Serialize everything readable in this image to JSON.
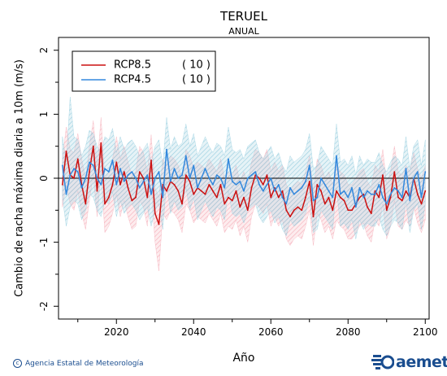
{
  "chart_data": {
    "type": "line",
    "title": "TERUEL",
    "subtitle": "ANUAL",
    "xlabel": "Año",
    "ylabel": "Cambio de racha máxima diaria a 10m (m/s)",
    "xlim": [
      2005,
      2101
    ],
    "ylim": [
      -2.2,
      2.2
    ],
    "xticks": [
      2020,
      2040,
      2060,
      2080,
      2100
    ],
    "yticks": [
      -2,
      -1,
      0,
      1,
      2
    ],
    "legend": {
      "placement": "top-left",
      "entries": [
        {
          "name": "RCP8.5",
          "count": "( 10 )",
          "color": "#cc1111"
        },
        {
          "name": "RCP4.5",
          "count": "( 10 )",
          "color": "#3388dd"
        }
      ]
    },
    "band_colors": {
      "RCP8.5": "#f4a6b2",
      "RCP4.5": "#8ec9dc"
    },
    "years_start": 2006,
    "series": [
      {
        "name": "RCP8.5",
        "color": "#cc1111",
        "values": [
          -0.1,
          0.42,
          0.05,
          0.0,
          0.3,
          -0.1,
          -0.4,
          0.1,
          0.5,
          -0.2,
          0.55,
          -0.4,
          -0.3,
          -0.1,
          0.25,
          -0.1,
          0.1,
          -0.15,
          -0.35,
          -0.3,
          0.1,
          0.0,
          -0.3,
          0.28,
          -0.55,
          -0.72,
          -0.1,
          -0.2,
          -0.05,
          -0.1,
          -0.2,
          -0.4,
          0.05,
          -0.05,
          -0.25,
          -0.15,
          -0.2,
          -0.25,
          -0.1,
          -0.2,
          -0.3,
          -0.1,
          -0.4,
          -0.3,
          -0.35,
          -0.2,
          -0.45,
          -0.3,
          -0.5,
          -0.15,
          0.05,
          0.0,
          -0.1,
          0.05,
          -0.3,
          -0.15,
          -0.3,
          -0.2,
          -0.5,
          -0.6,
          -0.5,
          -0.45,
          -0.5,
          -0.3,
          -0.05,
          -0.6,
          -0.1,
          -0.2,
          -0.4,
          -0.3,
          -0.5,
          -0.2,
          -0.3,
          -0.35,
          -0.5,
          -0.5,
          -0.4,
          -0.3,
          -0.25,
          -0.45,
          -0.55,
          -0.2,
          -0.3,
          0.05,
          -0.5,
          -0.3,
          0.1,
          -0.3,
          -0.35,
          -0.2,
          -0.3,
          0.0,
          -0.25,
          -0.4,
          -0.2
        ],
        "low": [
          -0.45,
          -0.1,
          -0.4,
          -0.5,
          -0.2,
          -0.55,
          -0.8,
          -0.35,
          0.05,
          -0.6,
          0.1,
          -0.85,
          -0.75,
          -0.55,
          -0.25,
          -0.6,
          -0.35,
          -0.6,
          -0.8,
          -0.75,
          -0.35,
          -0.45,
          -0.75,
          -0.15,
          -1.0,
          -1.45,
          -0.55,
          -0.65,
          -0.5,
          -0.55,
          -0.65,
          -0.85,
          -0.4,
          -0.5,
          -0.7,
          -0.6,
          -0.65,
          -0.7,
          -0.55,
          -0.65,
          -0.75,
          -0.55,
          -0.85,
          -0.75,
          -0.8,
          -0.65,
          -0.9,
          -0.75,
          -1.0,
          -0.6,
          -0.4,
          -0.45,
          -0.55,
          -0.4,
          -0.75,
          -0.6,
          -0.75,
          -0.65,
          -0.95,
          -1.05,
          -0.95,
          -0.9,
          -0.95,
          -0.75,
          -0.5,
          -1.05,
          -0.55,
          -0.65,
          -0.85,
          -0.75,
          -0.95,
          -0.65,
          -0.75,
          -0.8,
          -0.95,
          -0.95,
          -0.85,
          -0.75,
          -0.7,
          -0.9,
          -1.0,
          -0.65,
          -0.75,
          -0.4,
          -0.95,
          -0.75,
          -0.35,
          -0.75,
          -0.8,
          -0.65,
          -0.75,
          -0.45,
          -0.7,
          -0.85,
          -0.65
        ],
        "high": [
          0.3,
          0.8,
          0.45,
          0.4,
          0.7,
          0.3,
          0.0,
          0.5,
          0.9,
          0.2,
          0.95,
          0.0,
          0.1,
          0.3,
          0.65,
          0.3,
          0.5,
          0.25,
          0.05,
          0.1,
          0.5,
          0.4,
          0.1,
          0.68,
          -0.15,
          -0.3,
          0.3,
          0.2,
          0.35,
          0.3,
          0.2,
          0.0,
          0.45,
          0.35,
          0.15,
          0.25,
          0.2,
          0.15,
          0.3,
          0.2,
          0.1,
          0.3,
          0.0,
          0.1,
          0.05,
          0.2,
          -0.05,
          0.1,
          -0.1,
          0.25,
          0.45,
          0.4,
          0.3,
          0.45,
          0.1,
          0.25,
          0.1,
          0.2,
          -0.1,
          -0.2,
          -0.1,
          -0.05,
          -0.1,
          0.1,
          0.35,
          -0.2,
          0.3,
          0.2,
          0.0,
          0.1,
          -0.1,
          0.2,
          0.1,
          0.05,
          -0.1,
          -0.1,
          0.0,
          0.1,
          0.15,
          -0.05,
          -0.15,
          0.2,
          0.1,
          0.45,
          -0.1,
          0.1,
          0.5,
          0.1,
          0.05,
          0.2,
          0.1,
          0.4,
          0.15,
          0.0,
          0.2
        ]
      },
      {
        "name": "RCP4.5",
        "color": "#3388dd",
        "values": [
          0.2,
          -0.25,
          0.05,
          0.15,
          0.1,
          -0.15,
          0.0,
          0.25,
          0.2,
          0.0,
          -0.1,
          0.15,
          0.1,
          0.28,
          -0.1,
          0.15,
          -0.05,
          0.05,
          0.1,
          0.0,
          -0.15,
          -0.05,
          0.05,
          -0.25,
          0.0,
          0.1,
          -0.3,
          0.45,
          -0.05,
          0.15,
          0.0,
          0.05,
          0.35,
          0.0,
          0.2,
          -0.15,
          0.0,
          0.15,
          0.0,
          -0.1,
          0.05,
          0.0,
          -0.15,
          0.3,
          -0.05,
          -0.1,
          -0.05,
          -0.2,
          0.0,
          0.05,
          0.1,
          -0.1,
          -0.2,
          -0.1,
          0.0,
          -0.2,
          -0.1,
          -0.3,
          -0.4,
          -0.15,
          -0.25,
          -0.2,
          -0.15,
          -0.05,
          0.2,
          -0.35,
          -0.3,
          0.0,
          -0.1,
          -0.2,
          -0.3,
          0.35,
          -0.25,
          -0.2,
          -0.3,
          -0.15,
          -0.45,
          -0.15,
          -0.3,
          -0.2,
          -0.25,
          -0.25,
          -0.1,
          -0.3,
          -0.4,
          -0.25,
          -0.15,
          -0.2,
          -0.3,
          0.15,
          -0.35,
          0.0,
          0.1,
          -0.3,
          0.1
        ],
        "low": [
          -0.3,
          -0.75,
          -0.45,
          -0.35,
          -0.4,
          -0.65,
          -0.5,
          -0.25,
          -0.3,
          -0.5,
          -0.6,
          -0.35,
          -0.4,
          -0.22,
          -0.6,
          -0.35,
          -0.55,
          -0.45,
          -0.4,
          -0.5,
          -0.65,
          -0.55,
          -0.45,
          -0.75,
          -0.5,
          -0.4,
          -0.8,
          -0.05,
          -0.55,
          -0.35,
          -0.5,
          -0.45,
          -0.15,
          -0.5,
          -0.3,
          -0.65,
          -0.5,
          -0.35,
          -0.5,
          -0.6,
          -0.45,
          -0.5,
          -0.65,
          -0.2,
          -0.55,
          -0.6,
          -0.55,
          -0.7,
          -0.5,
          -0.45,
          -0.4,
          -0.6,
          -0.7,
          -0.6,
          -0.5,
          -0.7,
          -0.6,
          -0.8,
          -0.9,
          -0.65,
          -0.75,
          -0.7,
          -0.65,
          -0.55,
          -0.3,
          -0.85,
          -0.8,
          -0.5,
          -0.6,
          -0.7,
          -0.8,
          -0.15,
          -0.75,
          -0.7,
          -0.8,
          -0.65,
          -0.95,
          -0.65,
          -0.8,
          -0.7,
          -0.75,
          -0.75,
          -0.6,
          -0.8,
          -0.9,
          -0.75,
          -0.65,
          -0.7,
          -0.8,
          -0.35,
          -0.85,
          -0.5,
          -0.4,
          -0.8,
          -0.4
        ],
        "high": [
          0.65,
          0.25,
          1.27,
          0.65,
          0.6,
          0.35,
          0.5,
          0.75,
          0.7,
          0.5,
          0.4,
          0.65,
          0.6,
          0.78,
          0.4,
          0.65,
          0.45,
          0.55,
          0.6,
          0.5,
          0.35,
          0.45,
          0.55,
          0.25,
          0.5,
          0.6,
          0.2,
          0.95,
          0.45,
          0.65,
          0.5,
          0.55,
          0.85,
          0.5,
          0.7,
          0.35,
          0.5,
          0.65,
          0.5,
          0.4,
          0.55,
          0.5,
          0.35,
          0.8,
          0.45,
          0.4,
          0.45,
          0.3,
          0.5,
          0.55,
          0.6,
          0.4,
          0.3,
          0.4,
          0.5,
          0.3,
          0.4,
          0.2,
          0.1,
          0.35,
          0.25,
          0.3,
          0.35,
          0.45,
          0.7,
          0.15,
          0.2,
          0.5,
          0.4,
          0.3,
          0.2,
          0.85,
          0.25,
          0.3,
          0.2,
          0.35,
          0.05,
          0.35,
          0.2,
          0.3,
          0.25,
          0.25,
          0.4,
          0.2,
          0.1,
          0.25,
          0.35,
          0.3,
          0.2,
          0.65,
          0.15,
          0.5,
          0.6,
          0.2,
          0.6
        ]
      }
    ]
  },
  "footer": {
    "credit": "Agencia Estatal de Meteorología",
    "logo_text": "aemet"
  }
}
